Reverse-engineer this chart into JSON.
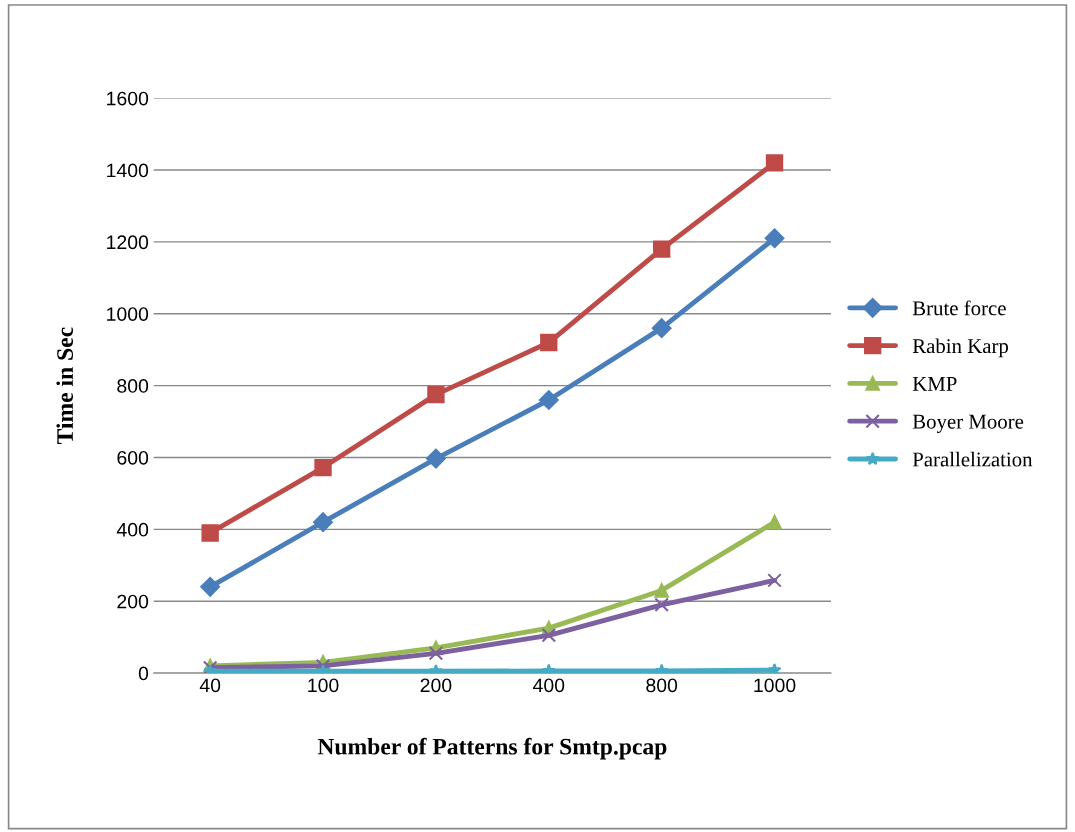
{
  "chart_data": {
    "type": "line",
    "xlabel": "Number of Patterns for Smtp.pcap",
    "ylabel": "Time in Sec",
    "categories": [
      "40",
      "100",
      "200",
      "400",
      "800",
      "1000"
    ],
    "ylim": [
      0,
      1600
    ],
    "yticks": [
      0,
      200,
      400,
      600,
      800,
      1000,
      1200,
      1400,
      1600
    ],
    "grid": "y",
    "legend": "right",
    "series": [
      {
        "name": "Brute force",
        "color": "#4a7ebb",
        "marker": "diamond",
        "values": [
          240,
          420,
          597,
          760,
          960,
          1210
        ]
      },
      {
        "name": "Rabin Karp",
        "color": "#be4b48",
        "marker": "square",
        "values": [
          390,
          572,
          775,
          920,
          1180,
          1420
        ]
      },
      {
        "name": "KMP",
        "color": "#98b954",
        "marker": "triangle",
        "values": [
          20,
          30,
          70,
          125,
          230,
          420
        ]
      },
      {
        "name": "Boyer Moore",
        "color": "#7d60a0",
        "marker": "cross",
        "values": [
          15,
          20,
          55,
          105,
          190,
          258
        ]
      },
      {
        "name": "Parallelization",
        "color": "#46aac5",
        "marker": "star",
        "values": [
          5,
          5,
          5,
          6,
          6,
          8
        ]
      }
    ]
  }
}
